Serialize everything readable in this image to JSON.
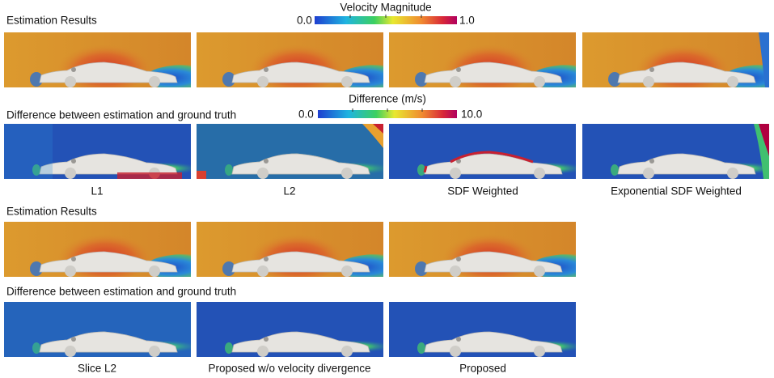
{
  "top": {
    "estimation_title": "Estimation Results",
    "velocity_colorbar": {
      "title": "Velocity Magnitude",
      "min_label": "0.0",
      "max_label": "1.0"
    },
    "difference_title": "Difference between estimation and ground truth",
    "difference_colorbar": {
      "title": "Difference (m/s)",
      "min_label": "0.0",
      "max_label": "10.0"
    },
    "captions": [
      "L1",
      "L2",
      "SDF Weighted",
      "Exponential SDF Weighted"
    ]
  },
  "bottom": {
    "estimation_title": "Estimation Results",
    "difference_title": "Difference between estimation and ground truth",
    "captions": [
      "Slice L2",
      "Proposed w/o velocity divergence",
      "Proposed"
    ]
  }
}
